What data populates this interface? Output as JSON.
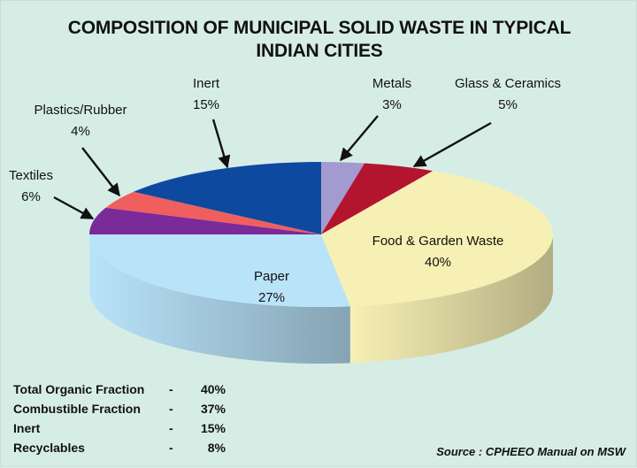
{
  "title_lines": [
    "COMPOSITION OF MUNICIPAL SOLID WASTE IN TYPICAL",
    "INDIAN CITIES"
  ],
  "chart_data": {
    "type": "pie",
    "title": "COMPOSITION OF MUNICIPAL SOLID WASTE IN TYPICAL INDIAN CITIES",
    "style": "3d",
    "slices": [
      {
        "label": "Metals",
        "value": 3,
        "value_label": "3%",
        "color": "#a39bd0"
      },
      {
        "label": "Glass & Ceramics",
        "value": 5,
        "value_label": "5%",
        "color": "#b3142e"
      },
      {
        "label": "Food & Garden Waste",
        "value": 40,
        "value_label": "40%",
        "color": "#f7f0b4"
      },
      {
        "label": "Paper",
        "value": 27,
        "value_label": "27%",
        "color": "#b9e3f9"
      },
      {
        "label": "Textiles",
        "value": 6,
        "value_label": "6%",
        "color": "#7b2a9a"
      },
      {
        "label": "Plastics/Rubber",
        "value": 4,
        "value_label": "4%",
        "color": "#ef5f5f"
      },
      {
        "label": "Inert",
        "value": 15,
        "value_label": "15%",
        "color": "#0e49a0"
      }
    ]
  },
  "summary": [
    {
      "label": "Total Organic Fraction",
      "dash": "-",
      "value": "40%"
    },
    {
      "label": "Combustible Fraction",
      "dash": "-",
      "value": "37%"
    },
    {
      "label": "Inert",
      "dash": "-",
      "value": "15%"
    },
    {
      "label": "Recyclables",
      "dash": "-",
      "value": "8%"
    }
  ],
  "source": "Source : CPHEEO Manual on MSW"
}
